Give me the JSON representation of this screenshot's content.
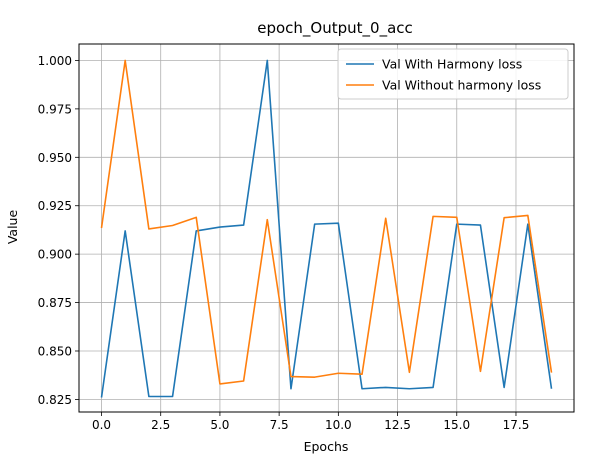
{
  "chart_data": {
    "type": "line",
    "title": "epoch_Output_0_acc",
    "xlabel": "Epochs",
    "ylabel": "Value",
    "xlim": [
      -0.95,
      19.95
    ],
    "ylim": [
      0.8185,
      1.0085
    ],
    "xticks": [
      0,
      2.5,
      5,
      7.5,
      10,
      12.5,
      15,
      17.5
    ],
    "xtick_labels": [
      "0.0",
      "2.5",
      "5.0",
      "7.5",
      "10.0",
      "12.5",
      "15.0",
      "17.5"
    ],
    "yticks": [
      0.825,
      0.85,
      0.875,
      0.9,
      0.925,
      0.95,
      0.975,
      1.0
    ],
    "ytick_labels": [
      "0.825",
      "0.850",
      "0.875",
      "0.900",
      "0.925",
      "0.950",
      "0.975",
      "1.000"
    ],
    "grid": true,
    "legend_position": "top-right",
    "x": [
      0,
      1,
      2,
      3,
      4,
      5,
      6,
      7,
      8,
      9,
      10,
      11,
      12,
      13,
      14,
      15,
      16,
      17,
      18,
      19
    ],
    "series": [
      {
        "name": "Val With Harmony loss",
        "color": "#1f77b4",
        "values": [
          0.826,
          0.912,
          0.8265,
          0.8265,
          0.912,
          0.914,
          0.915,
          1.0,
          0.8305,
          0.9155,
          0.916,
          0.8305,
          0.8312,
          0.8305,
          0.8312,
          0.9155,
          0.915,
          0.8312,
          0.9155,
          0.8305
        ]
      },
      {
        "name": "Val Without harmony loss",
        "color": "#ff7f0e",
        "values": [
          0.9135,
          1.0,
          0.913,
          0.9148,
          0.919,
          0.833,
          0.8345,
          0.9178,
          0.8368,
          0.8365,
          0.8385,
          0.838,
          0.9185,
          0.839,
          0.9195,
          0.919,
          0.8395,
          0.9188,
          0.92,
          0.8388
        ]
      }
    ]
  }
}
